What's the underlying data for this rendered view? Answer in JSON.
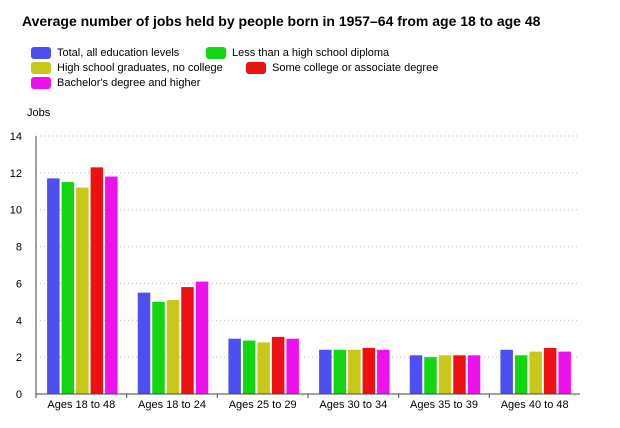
{
  "chart_data": {
    "type": "bar",
    "title": "Average number of jobs held by people born in 1957–64 from age 18 to age 48",
    "ylabel": "Jobs",
    "xlabel": "",
    "ylim": [
      0,
      14
    ],
    "yticks": [
      0,
      2,
      4,
      6,
      8,
      10,
      12,
      14
    ],
    "grid": true,
    "legend_position": "top",
    "categories": [
      "Ages 18 to 48",
      "Ages 18 to 24",
      "Ages 25 to 29",
      "Ages 30 to 34",
      "Ages 35 to 39",
      "Ages 40 to 48"
    ],
    "series": [
      {
        "name": "Total, all education levels",
        "color": "#4f4ff0",
        "values": [
          11.7,
          5.5,
          3.0,
          2.4,
          2.1,
          2.4
        ]
      },
      {
        "name": "Less than a high school diploma",
        "color": "#11d611",
        "values": [
          11.5,
          5.0,
          2.9,
          2.4,
          2.0,
          2.1
        ]
      },
      {
        "name": "High school graduates, no college",
        "color": "#c8c81a",
        "values": [
          11.2,
          5.1,
          2.8,
          2.4,
          2.1,
          2.3
        ]
      },
      {
        "name": "Some college or associate degree",
        "color": "#ee1111",
        "values": [
          12.3,
          5.8,
          3.1,
          2.5,
          2.1,
          2.5
        ]
      },
      {
        "name": "Bachelor's degree and higher",
        "color": "#ee11ee",
        "values": [
          11.8,
          6.1,
          3.0,
          2.4,
          2.1,
          2.3
        ]
      }
    ]
  }
}
